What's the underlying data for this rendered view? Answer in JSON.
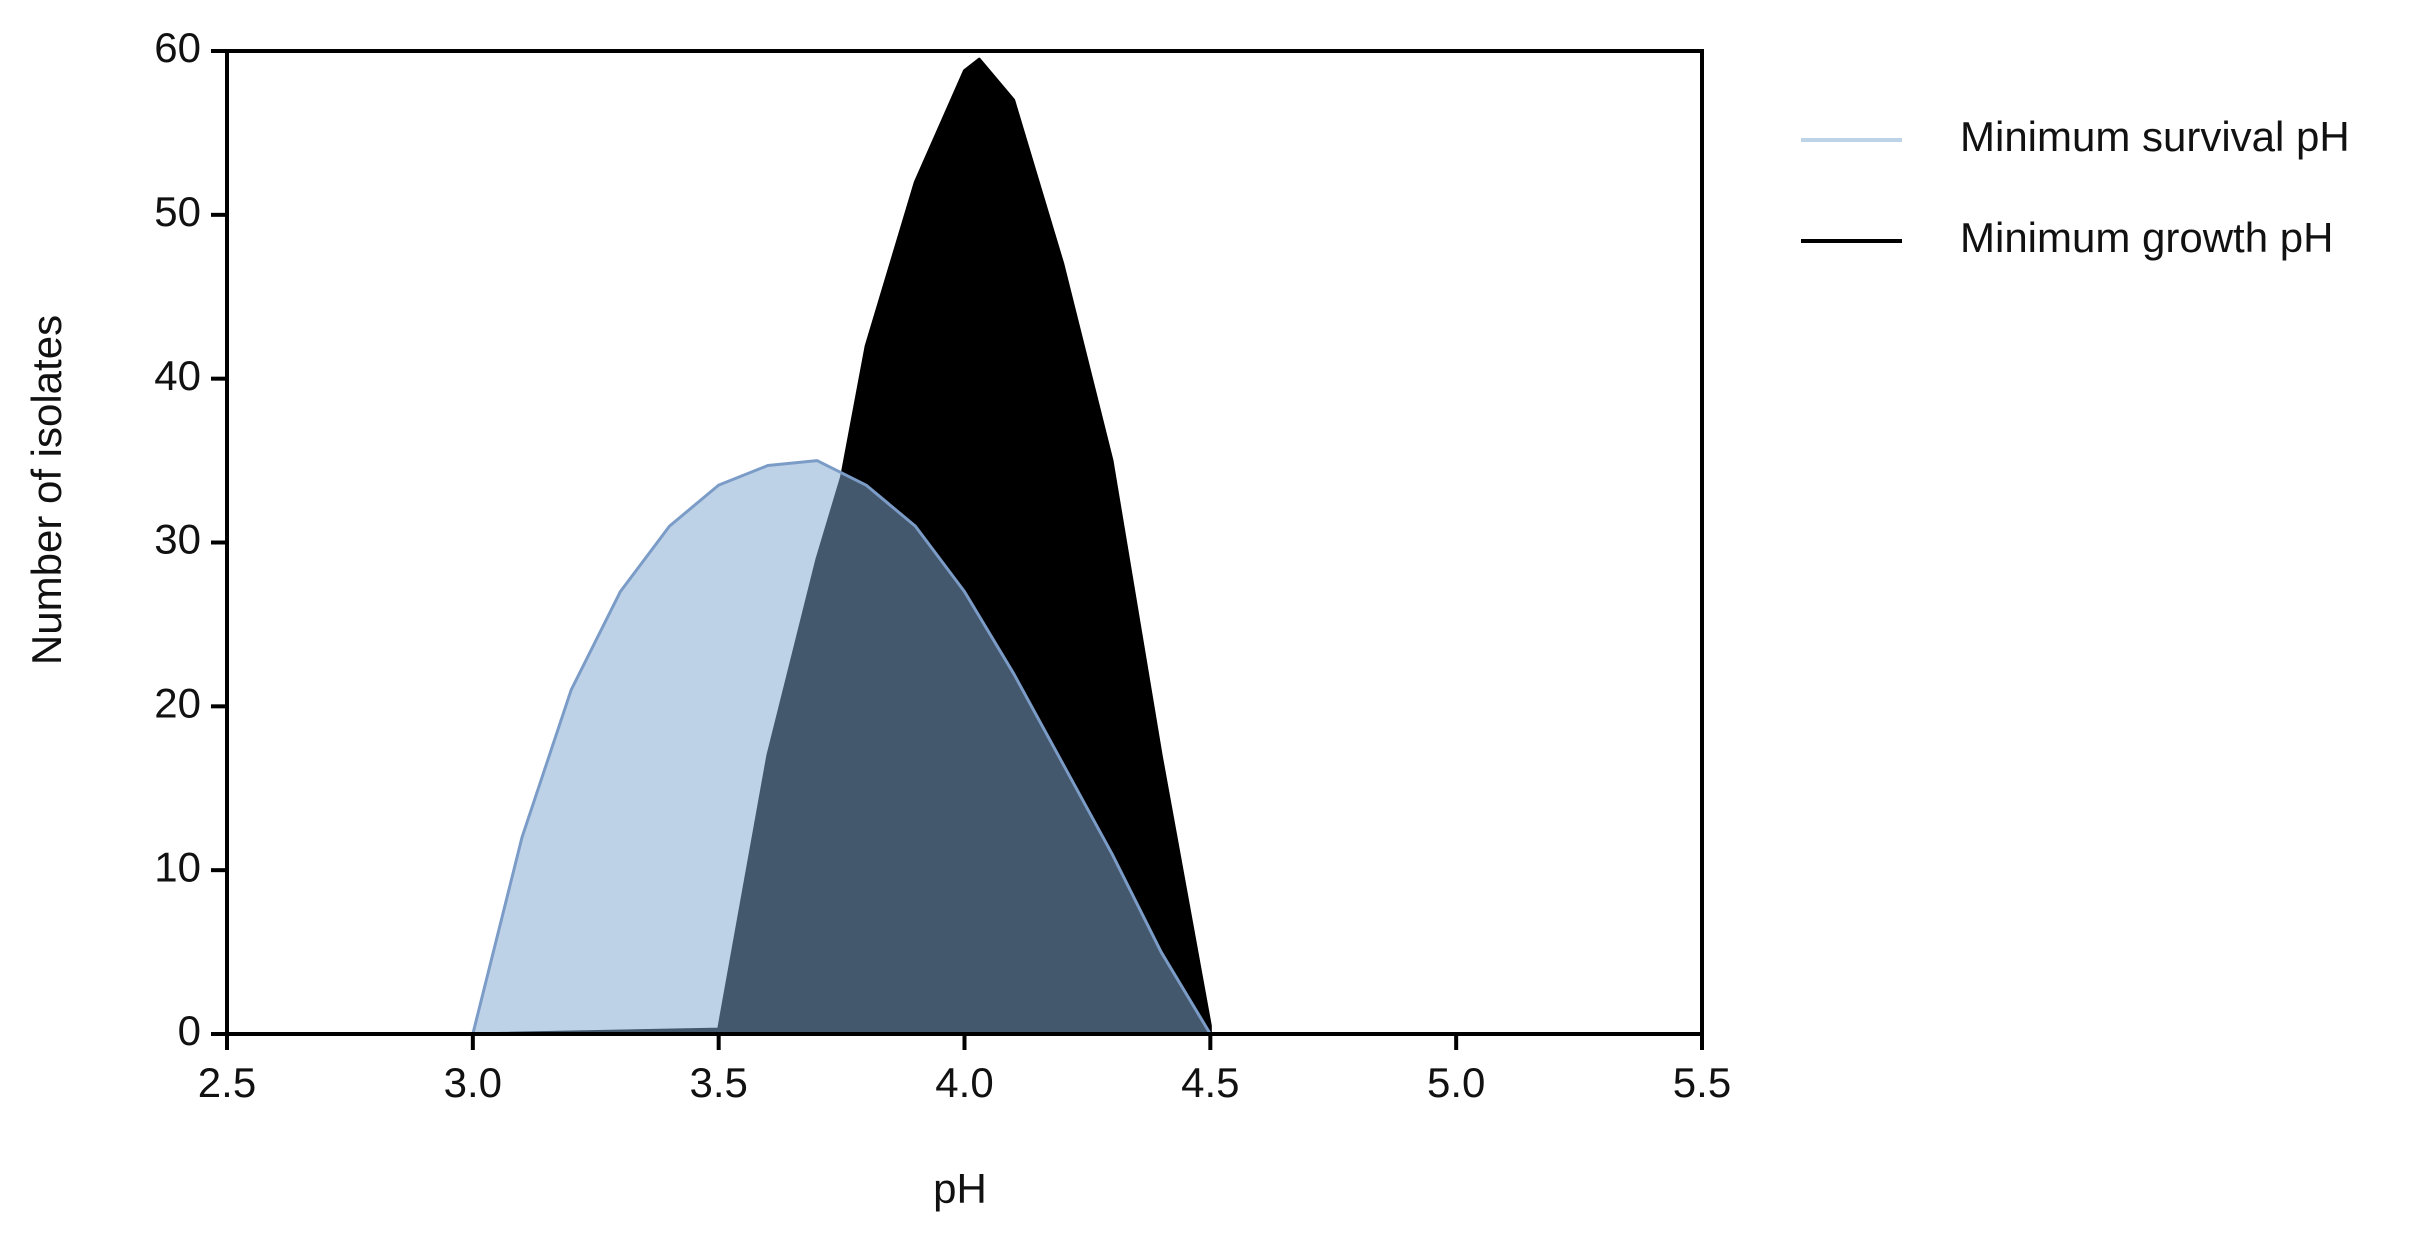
{
  "chart_data": {
    "type": "area",
    "x_label": "pH",
    "y_label": "Number of isolates",
    "xlim": [
      2.5,
      5.5
    ],
    "ylim": [
      0,
      60
    ],
    "xticks": [
      2.5,
      3.0,
      3.5,
      4.0,
      4.5,
      5.0,
      5.5
    ],
    "yticks": [
      0,
      10,
      20,
      30,
      40,
      50,
      60
    ],
    "grid": false,
    "legend": "right",
    "series": [
      {
        "name": "Minimum growth pH",
        "color": "#000000",
        "x": [
          3.0,
          3.5,
          3.6,
          3.7,
          3.75,
          3.8,
          3.9,
          4.0,
          4.03,
          4.1,
          4.2,
          4.3,
          4.4,
          4.5
        ],
        "values": [
          0,
          0.3,
          17,
          29,
          34,
          42,
          52,
          58.8,
          59.5,
          57,
          47,
          35,
          17,
          0.5
        ]
      },
      {
        "name": "Minimum survival pH",
        "color": "#bdd3e8",
        "x": [
          3.0,
          3.1,
          3.2,
          3.3,
          3.4,
          3.5,
          3.6,
          3.7,
          3.8,
          3.9,
          4.0,
          4.1,
          4.2,
          4.3,
          4.4,
          4.5
        ],
        "values": [
          0,
          12,
          21,
          27,
          31,
          33.5,
          34.7,
          35,
          33.5,
          31,
          27,
          22,
          16.5,
          11,
          5,
          0
        ]
      }
    ]
  }
}
